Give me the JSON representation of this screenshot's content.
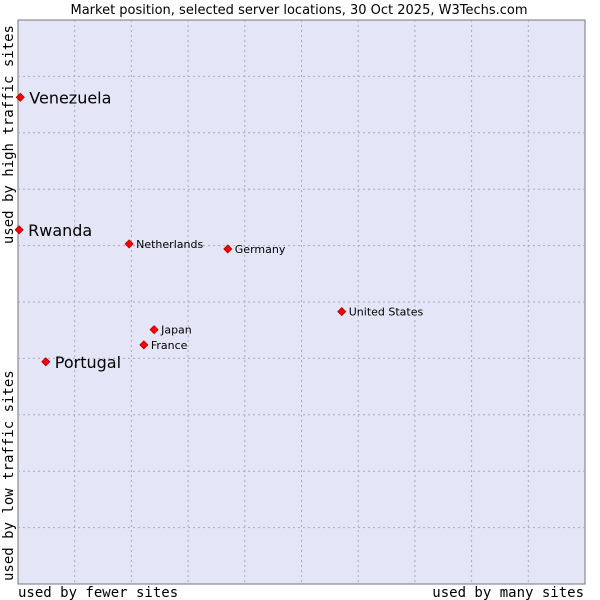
{
  "chart_data": {
    "type": "scatter",
    "title": "Market position, selected server locations, 30 Oct 2025, W3Techs.com",
    "xlabel_left": "used by fewer sites",
    "xlabel_right": "used by many sites",
    "ylabel_bottom": "used by low traffic sites",
    "ylabel_top": "used by high traffic sites",
    "xlim": [
      0,
      100
    ],
    "ylim": [
      0,
      100
    ],
    "grid": true,
    "point_color": "#ff0000",
    "plot_background": "#e4e6f8",
    "points": [
      {
        "name": "Venezuela",
        "x": 0.4,
        "y": 86.3,
        "highlight": true
      },
      {
        "name": "Rwanda",
        "x": 0.2,
        "y": 62.8,
        "highlight": true
      },
      {
        "name": "Portugal",
        "x": 4.9,
        "y": 39.4,
        "highlight": true
      },
      {
        "name": "Netherlands",
        "x": 19.6,
        "y": 60.3,
        "highlight": false
      },
      {
        "name": "Germany",
        "x": 37.0,
        "y": 59.4,
        "highlight": false
      },
      {
        "name": "United States",
        "x": 57.1,
        "y": 48.3,
        "highlight": false
      },
      {
        "name": "Japan",
        "x": 24.0,
        "y": 45.1,
        "highlight": false
      },
      {
        "name": "France",
        "x": 22.2,
        "y": 42.4,
        "highlight": false
      }
    ]
  }
}
